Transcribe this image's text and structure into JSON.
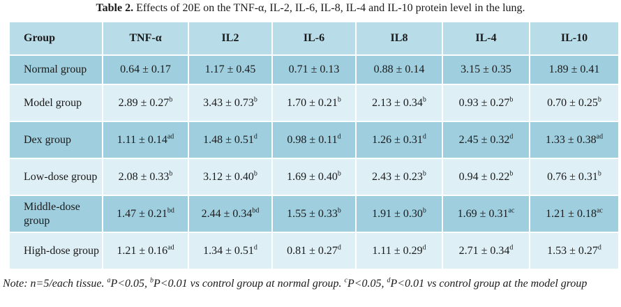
{
  "caption": {
    "label": "Table 2.",
    "text": " Effects of 20E on the TNF-α, IL-2, IL-6, IL-8, IL-4 and IL-10 protein level in the lung."
  },
  "table": {
    "headers": [
      "Group",
      "TNF-α",
      "IL2",
      "IL-6",
      "IL8",
      "IL-4",
      "IL-10"
    ],
    "rows": [
      {
        "group": "Normal group",
        "cells": [
          {
            "v": "0.64 ± 0.17",
            "s": ""
          },
          {
            "v": "1.17 ± 0.45",
            "s": ""
          },
          {
            "v": "0.71 ± 0.13",
            "s": ""
          },
          {
            "v": "0.88 ± 0.14",
            "s": ""
          },
          {
            "v": "3.15 ± 0.35",
            "s": ""
          },
          {
            "v": "1.89 ± 0.41",
            "s": ""
          }
        ]
      },
      {
        "group": "Model group",
        "cells": [
          {
            "v": "2.89 ± 0.27",
            "s": "b"
          },
          {
            "v": "3.43 ± 0.73",
            "s": "b"
          },
          {
            "v": "1.70 ± 0.21",
            "s": "b"
          },
          {
            "v": "2.13 ± 0.34",
            "s": "b"
          },
          {
            "v": "0.93 ± 0.27",
            "s": "b"
          },
          {
            "v": "0.70 ± 0.25",
            "s": "b"
          }
        ]
      },
      {
        "group": "Dex group",
        "cells": [
          {
            "v": "1.11 ± 0.14",
            "s": "ad"
          },
          {
            "v": "1.48 ± 0.51",
            "s": "d"
          },
          {
            "v": "0.98 ± 0.11",
            "s": "d"
          },
          {
            "v": "1.26 ± 0.31",
            "s": "d"
          },
          {
            "v": "2.45 ± 0.32",
            "s": "d"
          },
          {
            "v": "1.33 ± 0.38",
            "s": "ad"
          }
        ]
      },
      {
        "group": "Low-dose group",
        "cells": [
          {
            "v": "2.08 ± 0.33",
            "s": "b"
          },
          {
            "v": "3.12 ± 0.40",
            "s": "b"
          },
          {
            "v": "1.69 ± 0.40",
            "s": "b"
          },
          {
            "v": "2.43 ± 0.23",
            "s": "b"
          },
          {
            "v": "0.94 ± 0.22",
            "s": "b"
          },
          {
            "v": "0.76 ± 0.31",
            "s": "b"
          }
        ]
      },
      {
        "group": "Middle-dose group",
        "cells": [
          {
            "v": "1.47 ± 0.21",
            "s": "bd"
          },
          {
            "v": "2.44 ± 0.34",
            "s": "bd"
          },
          {
            "v": "1.55 ± 0.33",
            "s": "b"
          },
          {
            "v": "1.91 ± 0.30",
            "s": "b"
          },
          {
            "v": "1.69 ± 0.31",
            "s": "ac"
          },
          {
            "v": "1.21 ± 0.18",
            "s": "ac"
          }
        ]
      },
      {
        "group": "High-dose group",
        "cells": [
          {
            "v": "1.21 ± 0.16",
            "s": "ad"
          },
          {
            "v": "1.34 ± 0.51",
            "s": "d"
          },
          {
            "v": "0.81 ± 0.27",
            "s": "d"
          },
          {
            "v": "1.11 ± 0.29",
            "s": "d"
          },
          {
            "v": "2.71 ± 0.34",
            "s": "d"
          },
          {
            "v": "1.53 ± 0.27",
            "s": "d"
          }
        ]
      }
    ]
  },
  "note": {
    "p1": "Note: n=5/each tissue. ",
    "s1": "a",
    "p2": "P<0.05, ",
    "s2": "b",
    "p3": "P<0.01 vs control group at normal group. ",
    "s3": "c",
    "p4": "P<0.05, ",
    "s4": "d",
    "p5": "P<0.01 vs control group at the model group"
  },
  "colors": {
    "header_bg": "#b9dde8",
    "row_dark": "#9fcfdf",
    "row_light": "#deeff5"
  }
}
